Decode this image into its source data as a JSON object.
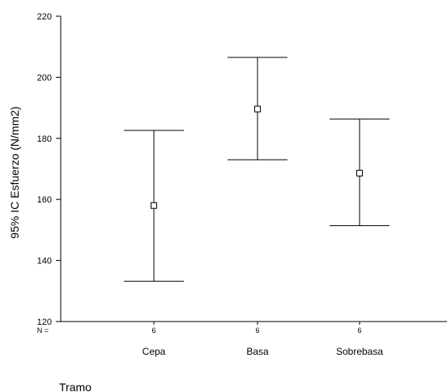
{
  "chart_data": {
    "type": "errorbar",
    "ylabel": "95% IC Esfuerzo (N/mm2)",
    "xlabel": "Tramo",
    "ylim": [
      120,
      220
    ],
    "yticks": [
      120,
      140,
      160,
      180,
      200,
      220
    ],
    "categories": [
      "Cepa",
      "Basa",
      "Sobrebasa"
    ],
    "n_prefix": "N =",
    "n_values": [
      "6",
      "6",
      "6"
    ],
    "means": [
      158,
      189.6,
      168.6
    ],
    "lower": [
      133.2,
      173,
      151.4
    ],
    "upper": [
      182.6,
      206.5,
      186.3
    ],
    "grid": false,
    "legend": "none"
  }
}
